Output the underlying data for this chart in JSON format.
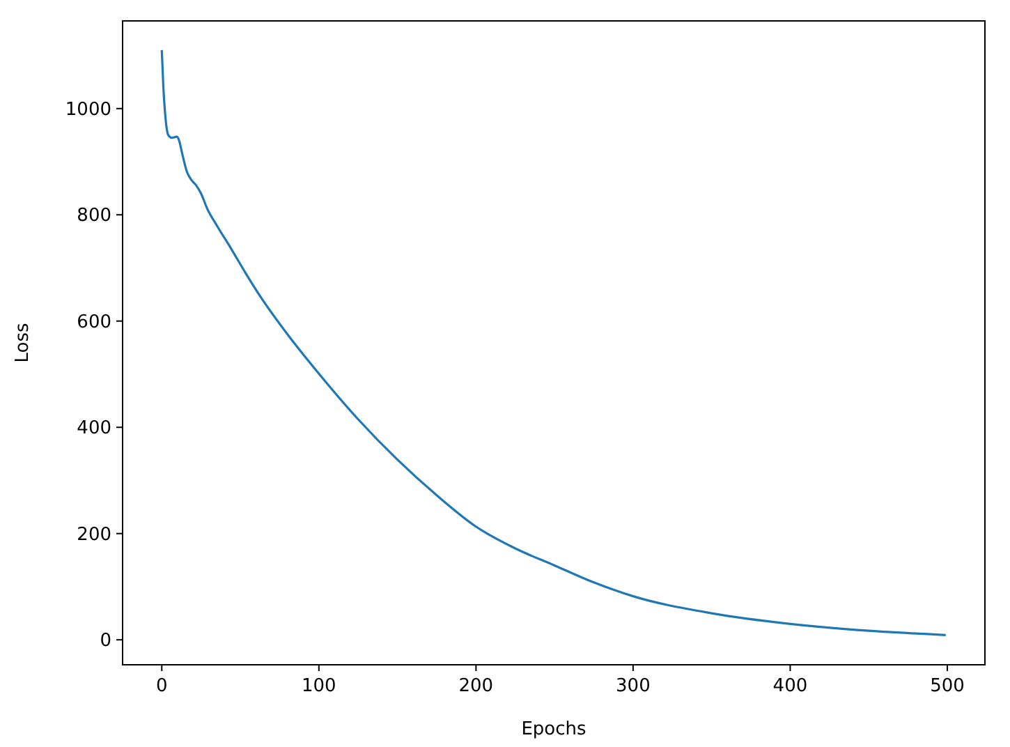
{
  "chart_data": {
    "type": "line",
    "xlabel": "Epochs",
    "ylabel": "Loss",
    "x": [
      0,
      1,
      2,
      3,
      4,
      5,
      6,
      8,
      9.5,
      11,
      13,
      16,
      19,
      22,
      25,
      29,
      35,
      44,
      53,
      63,
      80,
      100,
      125,
      150,
      175,
      200,
      225,
      250,
      275,
      300,
      350,
      400,
      450,
      499
    ],
    "series": [
      {
        "color": "#1f77b4",
        "values": [
          1110,
          1040,
          995,
          965,
          951,
          947,
          945,
          946,
          947,
          940,
          915,
          881,
          865,
          855,
          840,
          811,
          780,
          737,
          692,
          645,
          575,
          501,
          415,
          339,
          272,
          213,
          172,
          140,
          108,
          82,
          50,
          30,
          17,
          9
        ]
      }
    ],
    "xlim": [
      -24.95,
      523.95
    ],
    "xticks": [
      0,
      100,
      200,
      300,
      400,
      500
    ],
    "ylim": [
      -47,
      1165
    ],
    "yticks": [
      0,
      200,
      400,
      600,
      800,
      1000
    ],
    "grid": false
  }
}
